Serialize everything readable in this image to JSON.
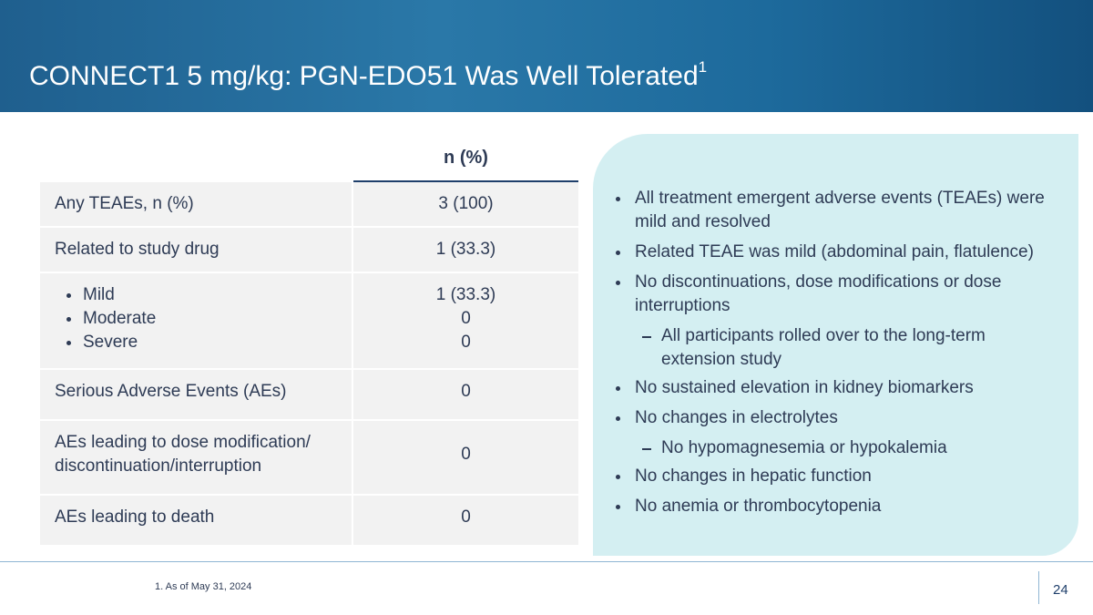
{
  "header": {
    "title": "CONNECT1 5 mg/kg: PGN-EDO51 Was Well Tolerated",
    "title_footnote": "1"
  },
  "table": {
    "column_header": "n (%)",
    "rows": [
      {
        "label": "Any TEAEs, n (%)",
        "value": "3 (100)"
      },
      {
        "label": "Related to study drug",
        "value": "1 (33.3)"
      },
      {
        "items": [
          {
            "label": "Mild",
            "value": "1 (33.3)"
          },
          {
            "label": "Moderate",
            "value": "0"
          },
          {
            "label": "Severe",
            "value": "0"
          }
        ]
      },
      {
        "label": "Serious Adverse Events (AEs)",
        "value": "0"
      },
      {
        "label": "AEs leading to dose modification/ discontinuation/interruption",
        "value": "0"
      },
      {
        "label": "AEs leading to death",
        "value": "0"
      }
    ]
  },
  "panel": {
    "bullets": [
      {
        "text": "All treatment emergent adverse events (TEAEs) were mild and resolved"
      },
      {
        "text": "Related TEAE was mild (abdominal pain, flatulence)"
      },
      {
        "text": "No discontinuations, dose modifications or dose interruptions",
        "sub": [
          "All participants rolled over to the long-term extension study"
        ]
      },
      {
        "text": "No sustained elevation in kidney biomarkers"
      },
      {
        "text": "No changes in electrolytes",
        "sub": [
          "No hypomagnesemia or hypokalemia"
        ]
      },
      {
        "text": "No changes in hepatic function"
      },
      {
        "text": "No anemia or thrombocytopenia"
      }
    ]
  },
  "footer": {
    "footnote": "1. As of May 31, 2024",
    "page": "24"
  }
}
